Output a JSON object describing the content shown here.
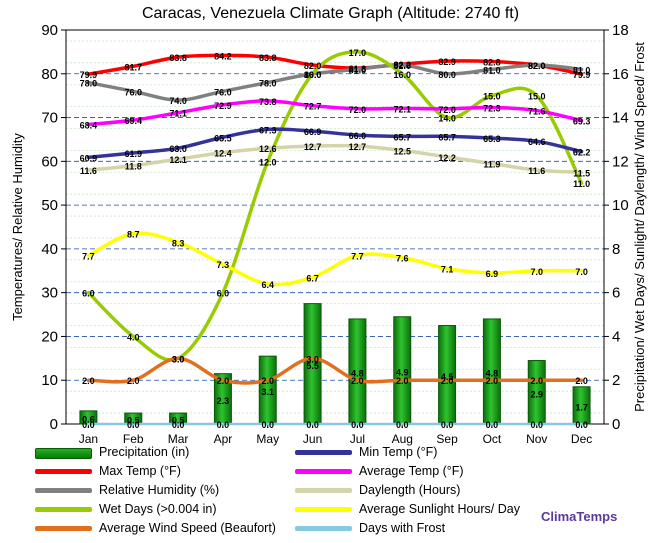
{
  "chart_data": {
    "type": "combo",
    "title": "Caracas, Venezuela Climate Graph (Altitude: 2740 ft)",
    "categories": [
      "Jan",
      "Feb",
      "Mar",
      "Apr",
      "May",
      "Jun",
      "Jul",
      "Aug",
      "Sep",
      "Oct",
      "Nov",
      "Dec"
    ],
    "ylabel_left": "Temperatures/ Relative Humidity",
    "ylabel_right": "Precipitation/ Wet Days/ Sunlight/ Daylength/ Wind Speed/ Frost",
    "ylim_left": [
      0,
      90
    ],
    "ylim_right": [
      0,
      18
    ],
    "yticks_left": [
      0,
      10,
      20,
      30,
      40,
      50,
      60,
      70,
      80,
      90
    ],
    "yticks_right": [
      0,
      2,
      4,
      6,
      8,
      10,
      12,
      14,
      16,
      18
    ],
    "series": [
      {
        "name": "Precipitation (in)",
        "kind": "bar",
        "axis": "right",
        "color": "#1a9a1a",
        "values": [
          0.6,
          0.5,
          0.5,
          2.3,
          3.1,
          5.5,
          4.8,
          4.9,
          4.5,
          4.8,
          2.9,
          1.7
        ]
      },
      {
        "name": "Max Temp (°F)",
        "kind": "line",
        "axis": "left",
        "color": "#ff0000",
        "values": [
          79.9,
          81.7,
          83.8,
          84.2,
          83.8,
          82.0,
          81.3,
          82.2,
          82.9,
          82.8,
          82.0,
          79.9
        ],
        "labels": [
          "79.9",
          "81.7",
          "83.8",
          "84.2",
          "83.8",
          "82.0",
          "81.3",
          "82.2",
          "82.9",
          "82.8",
          "82.0",
          "79.9"
        ]
      },
      {
        "name": "Relative Humidity (%)",
        "kind": "line",
        "axis": "left",
        "color": "#808080",
        "values": [
          78.0,
          76.0,
          74.0,
          76.0,
          78.0,
          80.0,
          81.0,
          82.0,
          80.0,
          81.0,
          82.0,
          81.0
        ],
        "labels": [
          "78.0",
          "76.0",
          "74.0",
          "76.0",
          "78.0",
          "80.0",
          "81.0",
          "82.0",
          "80.0",
          "81.0",
          "82.0",
          "81.0"
        ]
      },
      {
        "name": "Wet Days (>0.004 in)",
        "kind": "line",
        "axis": "right",
        "color": "#99cc00",
        "values": [
          6.0,
          4.0,
          3.0,
          6.0,
          12.0,
          16.0,
          17.0,
          16.0,
          14.0,
          15.0,
          15.0,
          11.0
        ],
        "labels": [
          "6.0",
          "4.0",
          "3.0",
          "6.0",
          "12.0",
          "16.0",
          "17.0",
          "16.0",
          "14.0",
          "15.0",
          "15.0",
          "11.0"
        ]
      },
      {
        "name": "Average Wind Speed (Beaufort)",
        "kind": "line",
        "axis": "right",
        "color": "#e07020",
        "values": [
          2.0,
          2.0,
          3.0,
          2.0,
          2.0,
          3.0,
          2.0,
          2.0,
          2.0,
          2.0,
          2.0,
          2.0
        ],
        "labels": [
          "2.0",
          "2.0",
          "3.0",
          "2.0",
          "2.0",
          "3.0",
          "2.0",
          "2.0",
          "2.0",
          "2.0",
          "2.0",
          "2.0"
        ]
      },
      {
        "name": "Min Temp (°F)",
        "kind": "line",
        "axis": "left",
        "color": "#333399",
        "values": [
          60.9,
          61.9,
          63.0,
          65.5,
          67.3,
          66.9,
          66.0,
          65.7,
          65.7,
          65.3,
          64.6,
          62.2
        ],
        "labels": [
          "60.9",
          "61.9",
          "63.0",
          "65.5",
          "67.3",
          "66.9",
          "66.0",
          "65.7",
          "65.7",
          "65.3",
          "64.6",
          "62.2"
        ]
      },
      {
        "name": "Average Temp (°F)",
        "kind": "line",
        "axis": "left",
        "color": "#ff00ff",
        "values": [
          68.4,
          69.4,
          71.1,
          72.9,
          73.8,
          72.7,
          72.0,
          72.1,
          72.0,
          72.3,
          71.6,
          69.3
        ],
        "labels": [
          "68.4",
          "69.4",
          "71.1",
          "72.9",
          "73.8",
          "72.7",
          "72.0",
          "72.1",
          "72.0",
          "72.3",
          "71.6",
          "69.3"
        ]
      },
      {
        "name": "Daylength (Hours)",
        "kind": "line",
        "axis": "right",
        "color": "#d4d4a8",
        "values": [
          11.6,
          11.8,
          12.1,
          12.4,
          12.6,
          12.7,
          12.7,
          12.5,
          12.2,
          11.9,
          11.6,
          11.5
        ],
        "labels": [
          "11.6",
          "11.8",
          "12.1",
          "12.4",
          "12.6",
          "12.7",
          "12.7",
          "12.5",
          "12.2",
          "11.9",
          "11.6",
          "11.5"
        ]
      },
      {
        "name": "Average Sunlight Hours/ Day",
        "kind": "line",
        "axis": "right",
        "color": "#ffff00",
        "values": [
          7.7,
          8.7,
          8.3,
          7.3,
          6.4,
          6.7,
          7.7,
          7.6,
          7.1,
          6.9,
          7.0,
          7.0
        ],
        "labels": [
          "7.7",
          "8.7",
          "8.3",
          "7.3",
          "6.4",
          "6.7",
          "7.7",
          "7.6",
          "7.1",
          "6.9",
          "7.0",
          "7.0"
        ]
      },
      {
        "name": "Days with Frost",
        "kind": "line",
        "axis": "right",
        "color": "#88c8e0",
        "values": [
          0,
          0,
          0,
          0,
          0,
          0,
          0,
          0,
          0,
          0,
          0,
          0
        ],
        "labels": [
          "0.0",
          "0.0",
          "0.0",
          "0.0",
          "0.0",
          "0.0",
          "0.0",
          "0.0",
          "0.0",
          "0.0",
          "0.0",
          "0.0"
        ]
      }
    ],
    "grid": true,
    "legend_position": "bottom"
  },
  "brand": "ClimaTemps",
  "legend": [
    {
      "label": "Precipitation (in)",
      "color": "#1a9a1a",
      "kind": "bar"
    },
    {
      "label": "Min Temp (°F)",
      "color": "#333399",
      "kind": "line"
    },
    {
      "label": "Max Temp (°F)",
      "color": "#ff0000",
      "kind": "line"
    },
    {
      "label": "Average Temp (°F)",
      "color": "#ff00ff",
      "kind": "line"
    },
    {
      "label": "Relative Humidity (%)",
      "color": "#808080",
      "kind": "line"
    },
    {
      "label": "Daylength (Hours)",
      "color": "#d4d4a8",
      "kind": "line"
    },
    {
      "label": "Wet Days (>0.004 in)",
      "color": "#99cc00",
      "kind": "line"
    },
    {
      "label": "Average Sunlight Hours/ Day",
      "color": "#ffff00",
      "kind": "line"
    },
    {
      "label": "Average Wind Speed (Beaufort)",
      "color": "#e07020",
      "kind": "line"
    },
    {
      "label": "Days with Frost",
      "color": "#88c8e0",
      "kind": "line"
    }
  ]
}
